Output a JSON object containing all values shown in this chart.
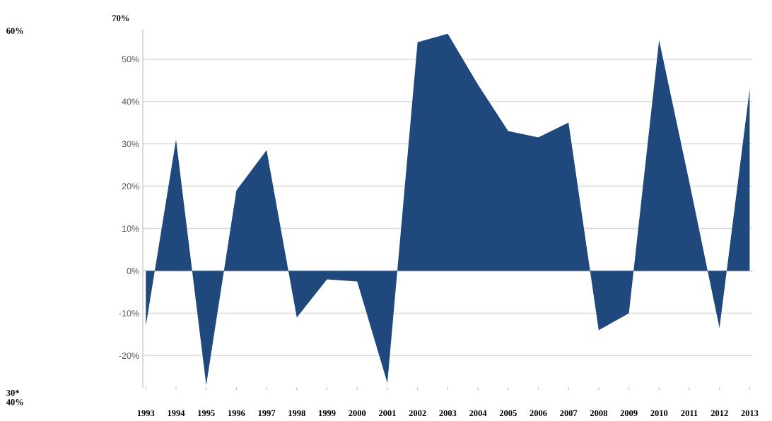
{
  "chart_data": {
    "type": "area",
    "categories": [
      "1993",
      "1994",
      "1995",
      "1996",
      "1997",
      "1998",
      "1999",
      "2000",
      "2001",
      "2002",
      "2003",
      "2004",
      "2005",
      "2006",
      "2007",
      "2008",
      "2009",
      "2010",
      "2011",
      "2012",
      "2013"
    ],
    "series": [
      {
        "color": "#1f497d",
        "values": [
          -13,
          31,
          -27,
          19,
          28.5,
          -11,
          -2,
          -2.5,
          -26.5,
          54,
          56,
          44,
          33,
          31.5,
          35,
          -14,
          -10,
          54.5,
          21,
          -13.5,
          43
        ]
      }
    ],
    "ylim": [
      -27.5,
      57
    ],
    "yticks": [
      {
        "value": -20,
        "label": "-20%"
      },
      {
        "value": -10,
        "label": "-10%"
      },
      {
        "value": 0,
        "label": "0%"
      },
      {
        "value": 10,
        "label": "10%"
      },
      {
        "value": 20,
        "label": "20%"
      },
      {
        "value": 30,
        "label": "30%"
      },
      {
        "value": 40,
        "label": "40%"
      },
      {
        "value": 50,
        "label": "50%"
      }
    ],
    "grid": "y",
    "annotations": [
      "70%",
      "60%",
      "30*",
      "40%"
    ]
  }
}
